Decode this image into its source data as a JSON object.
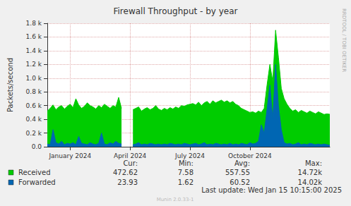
{
  "chart_data": {
    "type": "area",
    "title": "Firewall Throughput - by year",
    "y_label": "Packets/second",
    "watermark": "RRDTOOL / TOBI OETIKER",
    "last_update": "Last update: Wed Jan 15 10:15:00 2025",
    "footer": "Munin 2.0.33-1",
    "grid": true,
    "stats_columns": [
      "Cur:",
      "Min:",
      "Avg:",
      "Max:"
    ],
    "categories": [
      null,
      null,
      null,
      null,
      null,
      null,
      null,
      null,
      "January 2024",
      null,
      null,
      null,
      null,
      null,
      null,
      null,
      null,
      null,
      null,
      null,
      null,
      null,
      null,
      null,
      null,
      null,
      null,
      null,
      null,
      "April 2024",
      null,
      null,
      null,
      null,
      null,
      null,
      null,
      null,
      null,
      null,
      null,
      null,
      null,
      null,
      null,
      null,
      null,
      null,
      null,
      null,
      "July 2024",
      null,
      null,
      null,
      null,
      null,
      null,
      null,
      null,
      null,
      null,
      null,
      null,
      null,
      null,
      null,
      null,
      null,
      null,
      null,
      null,
      "October 2024",
      null,
      null,
      null,
      null,
      null,
      null,
      null,
      null,
      null,
      null,
      null,
      null,
      null,
      null,
      null,
      null,
      null,
      null,
      null,
      null,
      null,
      null,
      null,
      null,
      null,
      null,
      null,
      null
    ],
    "ylim": [
      0,
      1800
    ],
    "yticks": [
      {
        "value": 0,
        "label": "0.0"
      },
      {
        "value": 200,
        "label": "0.2 k"
      },
      {
        "value": 400,
        "label": "0.4 k"
      },
      {
        "value": 600,
        "label": "0.6 k"
      },
      {
        "value": 800,
        "label": "0.8 k"
      },
      {
        "value": 1000,
        "label": "1.0 k"
      },
      {
        "value": 1200,
        "label": "1.2 k"
      },
      {
        "value": 1400,
        "label": "1.4 k"
      },
      {
        "value": 1600,
        "label": "1.6 k"
      },
      {
        "value": 1800,
        "label": "1.8 k"
      }
    ],
    "series": [
      {
        "name": "Received",
        "color": "#00cc00",
        "stats": [
          472.62,
          7.58,
          557.55,
          {
            "value": 14720,
            "label": "14.72k"
          }
        ],
        "values": [
          520,
          560,
          610,
          540,
          580,
          600,
          550,
          590,
          620,
          570,
          700,
          610,
          560,
          590,
          640,
          600,
          580,
          550,
          600,
          570,
          620,
          590,
          560,
          600,
          580,
          720,
          560,
          null,
          null,
          null,
          540,
          560,
          580,
          520,
          550,
          570,
          540,
          560,
          600,
          550,
          530,
          560,
          540,
          570,
          550,
          580,
          560,
          600,
          590,
          610,
          620,
          630,
          610,
          650,
          600,
          640,
          660,
          620,
          670,
          640,
          660,
          680,
          650,
          670,
          640,
          660,
          620,
          600,
          560,
          540,
          520,
          500,
          510,
          490,
          520,
          500,
          560,
          900,
          1200,
          950,
          1700,
          1300,
          850,
          700,
          620,
          560,
          520,
          540,
          500,
          530,
          510,
          490,
          520,
          500,
          480,
          510,
          490,
          470,
          480,
          473
        ]
      },
      {
        "name": "Forwarded",
        "color": "#0066b3",
        "stats": [
          23.93,
          1.62,
          60.52,
          {
            "value": 14020,
            "label": "14.02k"
          }
        ],
        "values": [
          40,
          30,
          250,
          60,
          40,
          80,
          30,
          50,
          40,
          60,
          30,
          150,
          50,
          40,
          30,
          60,
          40,
          30,
          50,
          200,
          40,
          30,
          60,
          40,
          80,
          50,
          40,
          null,
          null,
          null,
          30,
          40,
          60,
          30,
          40,
          30,
          50,
          40,
          30,
          40,
          30,
          40,
          30,
          50,
          40,
          30,
          40,
          30,
          50,
          40,
          30,
          40,
          50,
          30,
          40,
          60,
          30,
          40,
          30,
          50,
          40,
          30,
          40,
          30,
          50,
          30,
          40,
          30,
          50,
          40,
          30,
          60,
          40,
          50,
          80,
          320,
          200,
          550,
          900,
          400,
          1200,
          600,
          250,
          60,
          40,
          50,
          30,
          40,
          60,
          30,
          40,
          30,
          50,
          40,
          30,
          40,
          30,
          40,
          30,
          24
        ]
      }
    ]
  }
}
